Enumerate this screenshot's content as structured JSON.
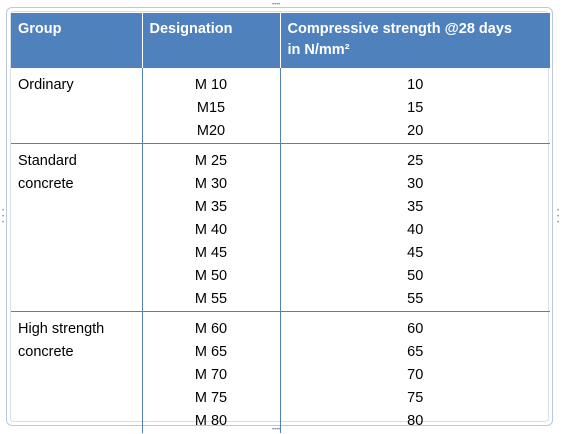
{
  "table": {
    "headers": {
      "group": "Group",
      "designation": "Designation",
      "strength_line1": "Compressive strength  @28 days",
      "strength_line2": "in N/mm²"
    },
    "groups": [
      {
        "name_lines": [
          "Ordinary"
        ],
        "designations": [
          "M 10",
          "M15",
          "M20"
        ],
        "strengths": [
          "10",
          "15",
          "20"
        ]
      },
      {
        "name_lines": [
          "Standard",
          "concrete"
        ],
        "designations": [
          "M 25",
          "M 30",
          "M 35",
          "M 40",
          "M 45",
          "M 50",
          "M 55"
        ],
        "strengths": [
          "25",
          "30",
          "35",
          "40",
          "45",
          "50",
          "55"
        ]
      },
      {
        "name_lines": [
          "High strength",
          "concrete"
        ],
        "designations": [
          "M 60",
          "M 65",
          "M 70",
          "M 75",
          "M 80"
        ],
        "strengths": [
          "60",
          "65",
          "70",
          "75",
          "80"
        ]
      }
    ]
  },
  "colors": {
    "header_bg": "#4f81bd",
    "header_text": "#ffffff",
    "rule": "#4f81bd"
  }
}
